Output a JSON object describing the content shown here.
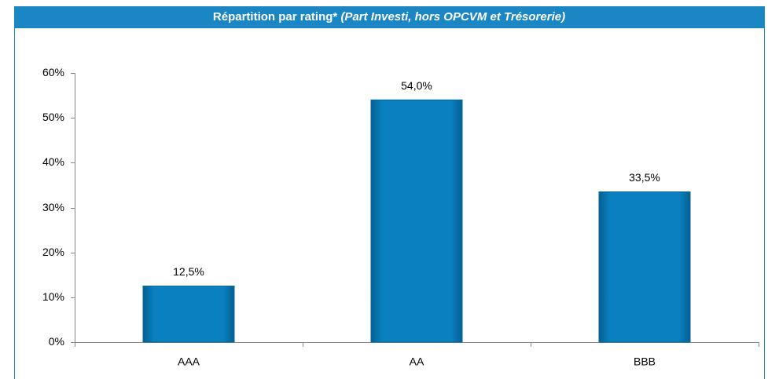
{
  "chart_data": {
    "type": "bar",
    "title": "Répartition par rating*",
    "subtitle": "(Part Investi, hors OPCVM et Trésorerie)",
    "categories": [
      "AAA",
      "AA",
      "BBB"
    ],
    "values": [
      12.5,
      54.0,
      33.5
    ],
    "value_labels": [
      "12,5%",
      "54,0%",
      "33,5%"
    ],
    "color": "#0a80c0",
    "ylim": [
      0,
      60
    ],
    "yticks": [
      {
        "value": 0,
        "label": "0%"
      },
      {
        "value": 10,
        "label": "10%"
      },
      {
        "value": 20,
        "label": "20%"
      },
      {
        "value": 30,
        "label": "30%"
      },
      {
        "value": 40,
        "label": "40%"
      },
      {
        "value": 50,
        "label": "50%"
      },
      {
        "value": 60,
        "label": "60%"
      }
    ],
    "grid": false
  }
}
